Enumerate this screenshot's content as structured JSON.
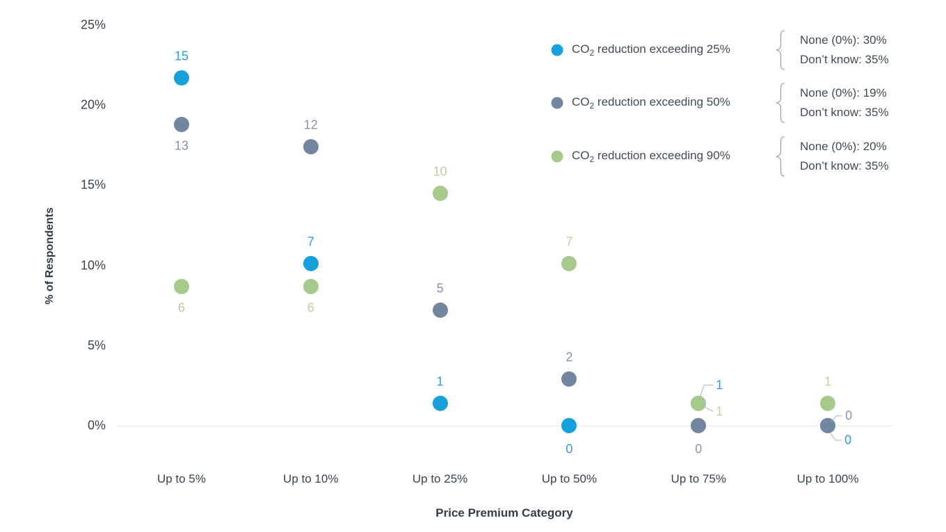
{
  "chart_data": {
    "type": "scatter",
    "title": "",
    "xlabel": "Price Premium Category",
    "ylabel": "% of Respondents",
    "ylim": [
      0,
      25
    ],
    "grid": false,
    "legend_position": "top-right",
    "y_ticks": [
      {
        "label": "0%",
        "value": 0
      },
      {
        "label": "5%",
        "value": 5
      },
      {
        "label": "10%",
        "value": 10
      },
      {
        "label": "15%",
        "value": 15
      },
      {
        "label": "20%",
        "value": 20
      },
      {
        "label": "25%",
        "value": 25
      }
    ],
    "categories": [
      "Up to 5%",
      "Up to 10%",
      "Up to 25%",
      "Up to 50%",
      "Up to 75%",
      "Up to 100%"
    ],
    "series": [
      {
        "name": "CO2 reduction exceeding 25%",
        "name_parts": {
          "prefix": "CO",
          "sub": "2",
          "suffix": " reduction exceeding 25%"
        },
        "color": "#18a0dc",
        "label_color": "#2e9fd8",
        "counts": [
          15,
          7,
          1,
          0,
          1,
          0
        ],
        "pct": [
          21.7,
          10.1,
          1.4,
          0,
          1.4,
          0
        ],
        "label_pos": [
          "above",
          "above",
          "above",
          "below",
          "callout-tr",
          "callout-br"
        ],
        "annotations": [
          "None (0%): 30%",
          "Don’t know: 35%"
        ]
      },
      {
        "name": "CO2 reduction exceeding 50%",
        "name_parts": {
          "prefix": "CO",
          "sub": "2",
          "suffix": " reduction exceeding 50%"
        },
        "color": "#7386a0",
        "label_color": "#8594ab",
        "counts": [
          13,
          12,
          5,
          2,
          0,
          0
        ],
        "pct": [
          18.8,
          17.4,
          7.2,
          2.9,
          0,
          0
        ],
        "label_pos": [
          "below",
          "above",
          "above",
          "above",
          "below",
          "callout-r-up"
        ],
        "annotations": [
          "None (0%): 19%",
          "Don’t know: 35%"
        ]
      },
      {
        "name": "CO2 reduction exceeding 90%",
        "name_parts": {
          "prefix": "CO",
          "sub": "2",
          "suffix": " reduction exceeding 90%"
        },
        "color": "#a5ca8c",
        "label_color": "#b9d1a5",
        "counts": [
          6,
          6,
          10,
          7,
          1,
          1
        ],
        "pct": [
          8.7,
          8.7,
          14.5,
          10.1,
          1.4,
          1.4
        ],
        "label_pos": [
          "below",
          "below",
          "above",
          "above",
          "callout-r",
          "above"
        ],
        "annotations": [
          "None (0%): 20%",
          "Don’t know: 35%"
        ]
      }
    ],
    "colors": {
      "axis_line": "#e2e3e5",
      "tick_text": "#39434e",
      "title_text": "#333e48",
      "legend_text": "#414b55",
      "brace": "#9aa4ae",
      "leader_line": "#a9b2bb"
    }
  }
}
